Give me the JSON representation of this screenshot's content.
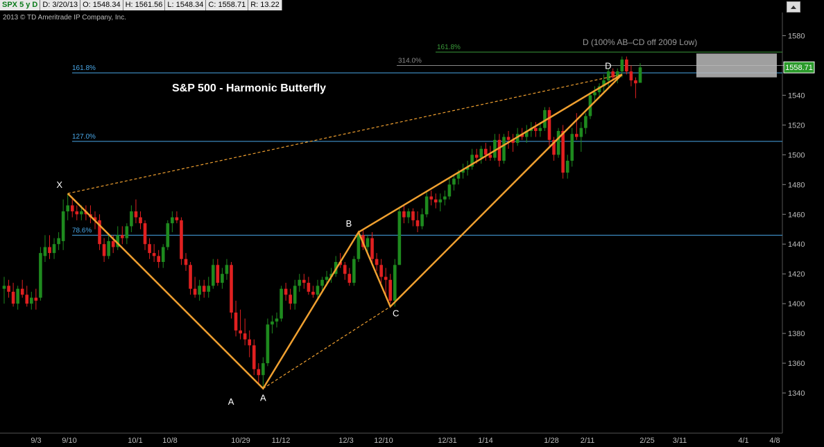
{
  "info_bar": {
    "symbol": "SPX 5 y D",
    "date": "D: 3/20/13",
    "open": "O: 1548.34",
    "high": "H: 1561.56",
    "low": "L: 1548.34",
    "close": "C: 1558.71",
    "range": "R: 13.22"
  },
  "copyright": "2013 © TD Ameritrade IP Company, Inc.",
  "chart_data": {
    "type": "candlestick",
    "title": "S&P 500 - Harmonic Butterfly",
    "x_tick_labels": [
      "9/3",
      "9/10",
      "10/1",
      "10/8",
      "10/29",
      "11/12",
      "12/3",
      "12/10",
      "12/31",
      "1/14",
      "1/28",
      "2/11",
      "2/25",
      "3/11",
      "4/1",
      "4/8"
    ],
    "y_ticks": [
      1340,
      1360,
      1380,
      1400,
      1420,
      1440,
      1460,
      1480,
      1500,
      1520,
      1540,
      1560,
      1580
    ],
    "ylim": [
      1320,
      1590
    ],
    "grid": false,
    "current_price_label": "1558.71",
    "colors": {
      "up": "#1e8a1e",
      "down": "#e02020",
      "pattern": "#f0a030",
      "fib": "#4aa8e8",
      "ext": "#3a9a3a"
    },
    "candles": [
      {
        "x": "8/27",
        "o": 1410,
        "h": 1418,
        "l": 1400,
        "c": 1412
      },
      {
        "x": "8/28",
        "o": 1412,
        "h": 1416,
        "l": 1404,
        "c": 1408
      },
      {
        "x": "8/29",
        "o": 1408,
        "h": 1414,
        "l": 1398,
        "c": 1400
      },
      {
        "x": "8/30",
        "o": 1400,
        "h": 1412,
        "l": 1396,
        "c": 1410
      },
      {
        "x": "8/31",
        "o": 1410,
        "h": 1416,
        "l": 1404,
        "c": 1406
      },
      {
        "x": "9/3",
        "o": 1406,
        "h": 1412,
        "l": 1398,
        "c": 1400
      },
      {
        "x": "9/4",
        "o": 1400,
        "h": 1408,
        "l": 1396,
        "c": 1404
      },
      {
        "x": "9/5",
        "o": 1404,
        "h": 1410,
        "l": 1396,
        "c": 1402
      },
      {
        "x": "9/6",
        "o": 1404,
        "h": 1438,
        "l": 1402,
        "c": 1434
      },
      {
        "x": "9/7",
        "o": 1432,
        "h": 1446,
        "l": 1428,
        "c": 1438
      },
      {
        "x": "9/10",
        "o": 1438,
        "h": 1446,
        "l": 1430,
        "c": 1434
      },
      {
        "x": "9/11",
        "o": 1434,
        "h": 1444,
        "l": 1430,
        "c": 1440
      },
      {
        "x": "9/12",
        "o": 1440,
        "h": 1448,
        "l": 1436,
        "c": 1444
      },
      {
        "x": "9/13",
        "o": 1442,
        "h": 1470,
        "l": 1436,
        "c": 1462
      },
      {
        "x": "9/14",
        "o": 1462,
        "h": 1474,
        "l": 1456,
        "c": 1466
      },
      {
        "x": "9/17",
        "o": 1466,
        "h": 1470,
        "l": 1458,
        "c": 1462
      },
      {
        "x": "9/18",
        "o": 1462,
        "h": 1466,
        "l": 1456,
        "c": 1460
      },
      {
        "x": "9/19",
        "o": 1460,
        "h": 1466,
        "l": 1456,
        "c": 1462
      },
      {
        "x": "9/20",
        "o": 1462,
        "h": 1466,
        "l": 1456,
        "c": 1460
      },
      {
        "x": "9/21",
        "o": 1460,
        "h": 1466,
        "l": 1454,
        "c": 1458
      },
      {
        "x": "9/24",
        "o": 1458,
        "h": 1462,
        "l": 1450,
        "c": 1456
      },
      {
        "x": "9/25",
        "o": 1456,
        "h": 1460,
        "l": 1436,
        "c": 1440
      },
      {
        "x": "9/26",
        "o": 1440,
        "h": 1444,
        "l": 1428,
        "c": 1432
      },
      {
        "x": "9/27",
        "o": 1432,
        "h": 1446,
        "l": 1430,
        "c": 1442
      },
      {
        "x": "9/28",
        "o": 1442,
        "h": 1446,
        "l": 1434,
        "c": 1438
      },
      {
        "x": "10/1",
        "o": 1438,
        "h": 1452,
        "l": 1436,
        "c": 1446
      },
      {
        "x": "10/2",
        "o": 1446,
        "h": 1452,
        "l": 1440,
        "c": 1444
      },
      {
        "x": "10/3",
        "o": 1444,
        "h": 1454,
        "l": 1440,
        "c": 1452
      },
      {
        "x": "10/4",
        "o": 1452,
        "h": 1466,
        "l": 1448,
        "c": 1462
      },
      {
        "x": "10/5",
        "o": 1462,
        "h": 1470,
        "l": 1454,
        "c": 1458
      },
      {
        "x": "10/8",
        "o": 1458,
        "h": 1462,
        "l": 1450,
        "c": 1454
      },
      {
        "x": "10/9",
        "o": 1454,
        "h": 1456,
        "l": 1436,
        "c": 1440
      },
      {
        "x": "10/10",
        "o": 1440,
        "h": 1444,
        "l": 1430,
        "c": 1434
      },
      {
        "x": "10/11",
        "o": 1434,
        "h": 1440,
        "l": 1428,
        "c": 1432
      },
      {
        "x": "10/12",
        "o": 1432,
        "h": 1436,
        "l": 1424,
        "c": 1428
      },
      {
        "x": "10/15",
        "o": 1428,
        "h": 1440,
        "l": 1424,
        "c": 1438
      },
      {
        "x": "10/16",
        "o": 1438,
        "h": 1456,
        "l": 1436,
        "c": 1454
      },
      {
        "x": "10/17",
        "o": 1454,
        "h": 1462,
        "l": 1448,
        "c": 1458
      },
      {
        "x": "10/18",
        "o": 1458,
        "h": 1462,
        "l": 1454,
        "c": 1456
      },
      {
        "x": "10/19",
        "o": 1456,
        "h": 1458,
        "l": 1426,
        "c": 1430
      },
      {
        "x": "10/22",
        "o": 1430,
        "h": 1434,
        "l": 1422,
        "c": 1426
      },
      {
        "x": "10/23",
        "o": 1426,
        "h": 1428,
        "l": 1406,
        "c": 1410
      },
      {
        "x": "10/24",
        "o": 1410,
        "h": 1418,
        "l": 1404,
        "c": 1406
      },
      {
        "x": "10/25",
        "o": 1406,
        "h": 1416,
        "l": 1402,
        "c": 1412
      },
      {
        "x": "10/26",
        "o": 1412,
        "h": 1416,
        "l": 1404,
        "c": 1408
      },
      {
        "x": "10/31",
        "o": 1408,
        "h": 1418,
        "l": 1404,
        "c": 1412
      },
      {
        "x": "11/1",
        "o": 1412,
        "h": 1430,
        "l": 1410,
        "c": 1426
      },
      {
        "x": "11/2",
        "o": 1426,
        "h": 1430,
        "l": 1412,
        "c": 1414
      },
      {
        "x": "11/5",
        "o": 1414,
        "h": 1424,
        "l": 1410,
        "c": 1420
      },
      {
        "x": "11/6",
        "o": 1420,
        "h": 1430,
        "l": 1416,
        "c": 1426
      },
      {
        "x": "11/7",
        "o": 1426,
        "h": 1428,
        "l": 1390,
        "c": 1394
      },
      {
        "x": "11/8",
        "o": 1394,
        "h": 1402,
        "l": 1378,
        "c": 1382
      },
      {
        "x": "11/9",
        "o": 1382,
        "h": 1396,
        "l": 1376,
        "c": 1380
      },
      {
        "x": "11/12",
        "o": 1380,
        "h": 1390,
        "l": 1372,
        "c": 1376
      },
      {
        "x": "11/13",
        "o": 1376,
        "h": 1382,
        "l": 1364,
        "c": 1372
      },
      {
        "x": "11/14",
        "o": 1372,
        "h": 1376,
        "l": 1352,
        "c": 1356
      },
      {
        "x": "11/15",
        "o": 1356,
        "h": 1360,
        "l": 1346,
        "c": 1352
      },
      {
        "x": "11/16",
        "o": 1352,
        "h": 1364,
        "l": 1344,
        "c": 1360
      },
      {
        "x": "11/19",
        "o": 1360,
        "h": 1390,
        "l": 1358,
        "c": 1386
      },
      {
        "x": "11/20",
        "o": 1386,
        "h": 1392,
        "l": 1380,
        "c": 1388
      },
      {
        "x": "11/21",
        "o": 1388,
        "h": 1394,
        "l": 1384,
        "c": 1390
      },
      {
        "x": "11/23",
        "o": 1390,
        "h": 1412,
        "l": 1388,
        "c": 1410
      },
      {
        "x": "11/26",
        "o": 1410,
        "h": 1414,
        "l": 1402,
        "c": 1406
      },
      {
        "x": "11/27",
        "o": 1406,
        "h": 1410,
        "l": 1396,
        "c": 1400
      },
      {
        "x": "11/28",
        "o": 1400,
        "h": 1416,
        "l": 1396,
        "c": 1412
      },
      {
        "x": "11/29",
        "o": 1412,
        "h": 1420,
        "l": 1408,
        "c": 1416
      },
      {
        "x": "11/30",
        "o": 1416,
        "h": 1420,
        "l": 1410,
        "c": 1414
      },
      {
        "x": "12/3",
        "o": 1414,
        "h": 1418,
        "l": 1406,
        "c": 1408
      },
      {
        "x": "12/4",
        "o": 1408,
        "h": 1412,
        "l": 1404,
        "c": 1406
      },
      {
        "x": "12/5",
        "o": 1406,
        "h": 1416,
        "l": 1402,
        "c": 1412
      },
      {
        "x": "12/6",
        "o": 1412,
        "h": 1418,
        "l": 1408,
        "c": 1416
      },
      {
        "x": "12/7",
        "o": 1416,
        "h": 1422,
        "l": 1412,
        "c": 1418
      },
      {
        "x": "12/10",
        "o": 1418,
        "h": 1424,
        "l": 1414,
        "c": 1420
      },
      {
        "x": "12/11",
        "o": 1420,
        "h": 1432,
        "l": 1418,
        "c": 1428
      },
      {
        "x": "12/12",
        "o": 1428,
        "h": 1434,
        "l": 1424,
        "c": 1426
      },
      {
        "x": "12/13",
        "o": 1426,
        "h": 1428,
        "l": 1416,
        "c": 1420
      },
      {
        "x": "12/14",
        "o": 1420,
        "h": 1424,
        "l": 1412,
        "c": 1414
      },
      {
        "x": "12/17",
        "o": 1414,
        "h": 1432,
        "l": 1412,
        "c": 1430
      },
      {
        "x": "12/18",
        "o": 1430,
        "h": 1448,
        "l": 1428,
        "c": 1446
      },
      {
        "x": "12/19",
        "o": 1446,
        "h": 1450,
        "l": 1436,
        "c": 1438
      },
      {
        "x": "12/20",
        "o": 1438,
        "h": 1446,
        "l": 1434,
        "c": 1444
      },
      {
        "x": "12/21",
        "o": 1444,
        "h": 1448,
        "l": 1426,
        "c": 1430
      },
      {
        "x": "12/24",
        "o": 1430,
        "h": 1434,
        "l": 1422,
        "c": 1426
      },
      {
        "x": "12/26",
        "o": 1426,
        "h": 1430,
        "l": 1414,
        "c": 1418
      },
      {
        "x": "12/27",
        "o": 1418,
        "h": 1424,
        "l": 1404,
        "c": 1416
      },
      {
        "x": "12/28",
        "o": 1416,
        "h": 1420,
        "l": 1400,
        "c": 1402
      },
      {
        "x": "12/31",
        "o": 1402,
        "h": 1430,
        "l": 1398,
        "c": 1426
      },
      {
        "x": "1/2",
        "o": 1426,
        "h": 1464,
        "l": 1426,
        "c": 1462
      },
      {
        "x": "1/3",
        "o": 1462,
        "h": 1466,
        "l": 1454,
        "c": 1458
      },
      {
        "x": "1/4",
        "o": 1458,
        "h": 1464,
        "l": 1454,
        "c": 1462
      },
      {
        "x": "1/7",
        "o": 1462,
        "h": 1464,
        "l": 1452,
        "c": 1456
      },
      {
        "x": "1/8",
        "o": 1456,
        "h": 1462,
        "l": 1448,
        "c": 1452
      },
      {
        "x": "1/9",
        "o": 1452,
        "h": 1464,
        "l": 1450,
        "c": 1460
      },
      {
        "x": "1/10",
        "o": 1460,
        "h": 1476,
        "l": 1458,
        "c": 1472
      },
      {
        "x": "1/11",
        "o": 1472,
        "h": 1476,
        "l": 1466,
        "c": 1470
      },
      {
        "x": "1/14",
        "o": 1470,
        "h": 1474,
        "l": 1464,
        "c": 1468
      },
      {
        "x": "1/15",
        "o": 1468,
        "h": 1474,
        "l": 1462,
        "c": 1470
      },
      {
        "x": "1/16",
        "o": 1470,
        "h": 1476,
        "l": 1466,
        "c": 1472
      },
      {
        "x": "1/17",
        "o": 1472,
        "h": 1484,
        "l": 1470,
        "c": 1480
      },
      {
        "x": "1/18",
        "o": 1480,
        "h": 1486,
        "l": 1476,
        "c": 1484
      },
      {
        "x": "1/22",
        "o": 1484,
        "h": 1490,
        "l": 1480,
        "c": 1488
      },
      {
        "x": "1/23",
        "o": 1488,
        "h": 1494,
        "l": 1484,
        "c": 1490
      },
      {
        "x": "1/24",
        "o": 1490,
        "h": 1496,
        "l": 1486,
        "c": 1492
      },
      {
        "x": "1/25",
        "o": 1492,
        "h": 1504,
        "l": 1490,
        "c": 1500
      },
      {
        "x": "1/28",
        "o": 1500,
        "h": 1504,
        "l": 1494,
        "c": 1498
      },
      {
        "x": "1/29",
        "o": 1498,
        "h": 1506,
        "l": 1494,
        "c": 1504
      },
      {
        "x": "1/30",
        "o": 1504,
        "h": 1508,
        "l": 1496,
        "c": 1500
      },
      {
        "x": "1/31",
        "o": 1500,
        "h": 1506,
        "l": 1496,
        "c": 1498
      },
      {
        "x": "2/1",
        "o": 1498,
        "h": 1514,
        "l": 1496,
        "c": 1510
      },
      {
        "x": "2/4",
        "o": 1510,
        "h": 1514,
        "l": 1492,
        "c": 1496
      },
      {
        "x": "2/5",
        "o": 1496,
        "h": 1514,
        "l": 1494,
        "c": 1512
      },
      {
        "x": "2/6",
        "o": 1512,
        "h": 1516,
        "l": 1504,
        "c": 1510
      },
      {
        "x": "2/7",
        "o": 1510,
        "h": 1514,
        "l": 1502,
        "c": 1508
      },
      {
        "x": "2/8",
        "o": 1508,
        "h": 1518,
        "l": 1506,
        "c": 1514
      },
      {
        "x": "2/11",
        "o": 1514,
        "h": 1518,
        "l": 1510,
        "c": 1512
      },
      {
        "x": "2/12",
        "o": 1512,
        "h": 1520,
        "l": 1508,
        "c": 1516
      },
      {
        "x": "2/13",
        "o": 1516,
        "h": 1522,
        "l": 1512,
        "c": 1518
      },
      {
        "x": "2/14",
        "o": 1518,
        "h": 1522,
        "l": 1512,
        "c": 1516
      },
      {
        "x": "2/15",
        "o": 1516,
        "h": 1522,
        "l": 1512,
        "c": 1518
      },
      {
        "x": "2/19",
        "o": 1518,
        "h": 1532,
        "l": 1516,
        "c": 1530
      },
      {
        "x": "2/20",
        "o": 1530,
        "h": 1532,
        "l": 1506,
        "c": 1510
      },
      {
        "x": "2/21",
        "o": 1510,
        "h": 1512,
        "l": 1496,
        "c": 1500
      },
      {
        "x": "2/22",
        "o": 1500,
        "h": 1518,
        "l": 1498,
        "c": 1516
      },
      {
        "x": "2/25",
        "o": 1516,
        "h": 1520,
        "l": 1484,
        "c": 1488
      },
      {
        "x": "2/26",
        "o": 1488,
        "h": 1500,
        "l": 1484,
        "c": 1496
      },
      {
        "x": "2/27",
        "o": 1496,
        "h": 1518,
        "l": 1492,
        "c": 1514
      },
      {
        "x": "2/28",
        "o": 1514,
        "h": 1528,
        "l": 1510,
        "c": 1512
      },
      {
        "x": "3/1",
        "o": 1512,
        "h": 1522,
        "l": 1502,
        "c": 1518
      },
      {
        "x": "3/4",
        "o": 1518,
        "h": 1528,
        "l": 1514,
        "c": 1526
      },
      {
        "x": "3/5",
        "o": 1526,
        "h": 1542,
        "l": 1524,
        "c": 1540
      },
      {
        "x": "3/6",
        "o": 1540,
        "h": 1546,
        "l": 1536,
        "c": 1542
      },
      {
        "x": "3/7",
        "o": 1542,
        "h": 1548,
        "l": 1538,
        "c": 1546
      },
      {
        "x": "3/8",
        "o": 1546,
        "h": 1554,
        "l": 1542,
        "c": 1550
      },
      {
        "x": "3/11",
        "o": 1550,
        "h": 1558,
        "l": 1546,
        "c": 1556
      },
      {
        "x": "3/12",
        "o": 1556,
        "h": 1558,
        "l": 1550,
        "c": 1552
      },
      {
        "x": "3/13",
        "o": 1552,
        "h": 1558,
        "l": 1548,
        "c": 1556
      },
      {
        "x": "3/14",
        "o": 1556,
        "h": 1566,
        "l": 1552,
        "c": 1564
      },
      {
        "x": "3/15",
        "o": 1564,
        "h": 1566,
        "l": 1554,
        "c": 1556
      },
      {
        "x": "3/18",
        "o": 1556,
        "h": 1560,
        "l": 1546,
        "c": 1550
      },
      {
        "x": "3/19",
        "o": 1550,
        "h": 1552,
        "l": 1538,
        "c": 1548
      },
      {
        "x": "3/20",
        "o": 1548.34,
        "h": 1561.56,
        "l": 1548.34,
        "c": 1558.71
      }
    ],
    "pattern_points": [
      {
        "label": "X",
        "date": "9/14",
        "value": 1474
      },
      {
        "label": "A",
        "date": "11/16",
        "value": 1343
      },
      {
        "label": "B",
        "date": "12/18",
        "value": 1448
      },
      {
        "label": "C",
        "date": "12/28",
        "value": 1398
      },
      {
        "label": "D",
        "date": "3/14",
        "value": 1554
      }
    ],
    "extra_labels": [
      {
        "text": "A",
        "date": "11/8",
        "value": 1332
      }
    ],
    "fib_lines": [
      {
        "label": "161.8%",
        "value": 1555
      },
      {
        "label": "127.0%",
        "value": 1509
      },
      {
        "label": "78.6%",
        "value": 1446
      }
    ],
    "extension_lines": [
      {
        "label": "161.8%",
        "value": 1569,
        "color": "#3a9a3a"
      },
      {
        "label": "314.0%",
        "value": 1560,
        "color": "#888888"
      }
    ],
    "d_target_label": "D (100% AB–CD off 2009 Low)",
    "annotations": {
      "title_x_date": "10/8",
      "title_y_value": 1542
    }
  }
}
